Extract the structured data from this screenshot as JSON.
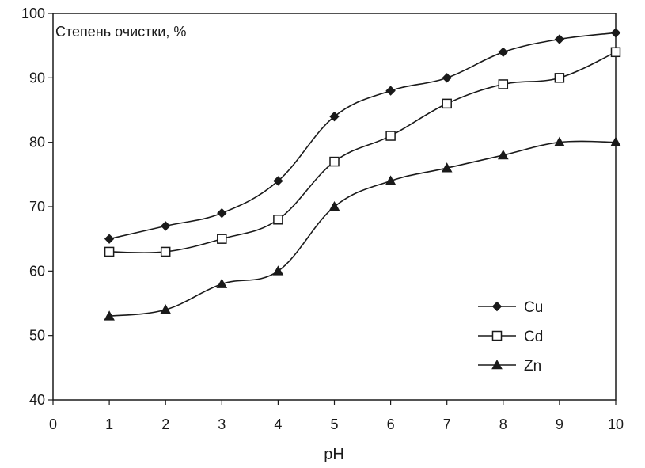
{
  "chart_data": {
    "type": "line",
    "title": "",
    "xlabel": "pH",
    "ylabel": "Степень очистки, %",
    "xlim": [
      0,
      10
    ],
    "ylim": [
      40,
      100
    ],
    "xticks": [
      0,
      1,
      2,
      3,
      4,
      5,
      6,
      7,
      8,
      9,
      10
    ],
    "yticks": [
      40,
      50,
      60,
      70,
      80,
      90,
      100
    ],
    "grid": false,
    "legend_position": "bottom-right",
    "x": [
      1,
      2,
      3,
      4,
      5,
      6,
      7,
      8,
      9,
      10
    ],
    "series": [
      {
        "name": "Cu",
        "marker": "diamond-filled",
        "values": [
          65,
          67,
          69,
          74,
          84,
          88,
          90,
          94,
          96,
          97
        ]
      },
      {
        "name": "Cd",
        "marker": "square-open",
        "values": [
          63,
          63,
          65,
          68,
          77,
          81,
          86,
          89,
          90,
          94
        ]
      },
      {
        "name": "Zn",
        "marker": "triangle-filled",
        "values": [
          53,
          54,
          58,
          60,
          70,
          74,
          76,
          78,
          80,
          80
        ]
      }
    ],
    "colors": {
      "line": "#1a1a1a",
      "background": "#ffffff"
    }
  }
}
